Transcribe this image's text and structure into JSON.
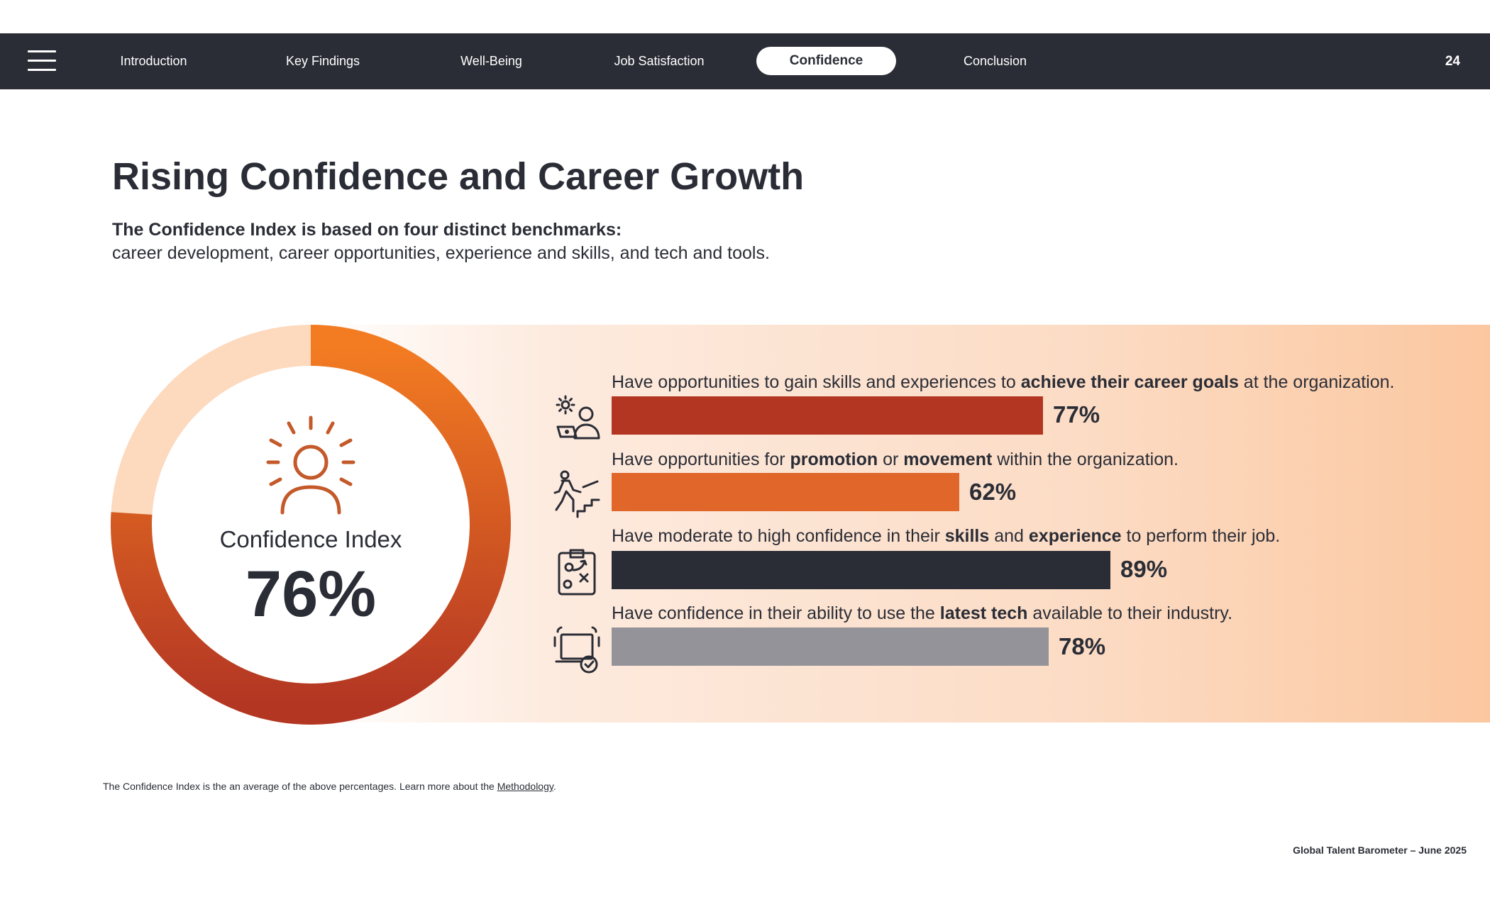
{
  "nav": {
    "tabs": [
      {
        "label": "Introduction"
      },
      {
        "label": "Key Findings"
      },
      {
        "label": "Well-Being"
      },
      {
        "label": "Job Satisfaction"
      },
      {
        "label": "Confidence"
      },
      {
        "label": "Conclusion"
      }
    ],
    "active_tab": "Confidence",
    "page_number": "24"
  },
  "heading": {
    "title": "Rising Confidence and Career Growth",
    "subtitle_bold": "The Confidence Index is based on four distinct benchmarks:",
    "subtitle": "career development, career opportunities, experience and skills, and tech and tools."
  },
  "index": {
    "label": "Confidence Index",
    "value_text": "76%",
    "value": 76
  },
  "benchmarks": [
    {
      "icon": "skills-growth-icon",
      "label_parts": [
        {
          "text": "Have opportunities to gain skills and experiences to ",
          "bold": false
        },
        {
          "text": "achieve their career goals",
          "bold": true
        },
        {
          "text": " at the organization.",
          "bold": false
        }
      ],
      "value": 77,
      "value_text": "77%",
      "color": "#b33623"
    },
    {
      "icon": "climbing-stairs-icon",
      "label_parts": [
        {
          "text": "Have opportunities for ",
          "bold": false
        },
        {
          "text": "promotion",
          "bold": true
        },
        {
          "text": " or ",
          "bold": false
        },
        {
          "text": "movement",
          "bold": true
        },
        {
          "text": " within the organization.",
          "bold": false
        }
      ],
      "value": 62,
      "value_text": "62%",
      "color": "#e0662a"
    },
    {
      "icon": "strategy-clipboard-icon",
      "label_parts": [
        {
          "text": "Have moderate to high confidence in their ",
          "bold": false
        },
        {
          "text": "skills",
          "bold": true
        },
        {
          "text": " and ",
          "bold": false
        },
        {
          "text": "experience",
          "bold": true
        },
        {
          "text": " to perform their job.",
          "bold": false
        }
      ],
      "value": 89,
      "value_text": "89%",
      "color": "#2b2d36"
    },
    {
      "icon": "laptop-check-icon",
      "label_parts": [
        {
          "text": "Have confidence in their ability to use the ",
          "bold": false
        },
        {
          "text": "latest tech",
          "bold": true
        },
        {
          "text": " available to their industry.",
          "bold": false
        }
      ],
      "value": 78,
      "value_text": "78%",
      "color": "#939399"
    }
  ],
  "footnote": {
    "text": "The Confidence Index is the an average of the above percentages. Learn more about the ",
    "link": "Methodology",
    "end": "."
  },
  "footer": "Global Talent Barometer – June 2025",
  "colors": {
    "navy": "#2b2d36",
    "orange": "#f37c22",
    "rust": "#b33623",
    "donut_track": "#fdd9be",
    "icon_orange": "#c4592a"
  }
}
